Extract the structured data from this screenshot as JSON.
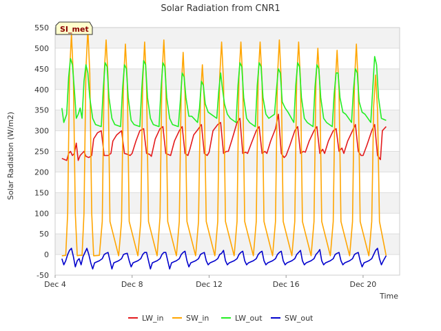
{
  "chart_data": {
    "type": "line",
    "title": "Solar Radiation from CNR1",
    "xlabel": "Time",
    "ylabel": "Solar Radiation (W/m2)",
    "badge": "SI_met",
    "x_range": [
      4,
      21.9
    ],
    "ylim": [
      -50,
      550
    ],
    "y_ticks": [
      -50,
      0,
      50,
      100,
      150,
      200,
      250,
      300,
      350,
      400,
      450,
      500,
      550
    ],
    "x_ticks": [
      {
        "value": 4,
        "label": "Dec 4"
      },
      {
        "value": 8,
        "label": "Dec 8"
      },
      {
        "value": 12,
        "label": "Dec 12"
      },
      {
        "value": 16,
        "label": "Dec 16"
      },
      {
        "value": 20,
        "label": "Dec 20"
      }
    ],
    "grid": true,
    "legend_position": "bottom",
    "series": [
      {
        "name": "LW_in",
        "color": "#e31a1c",
        "x": [
          4.35,
          4.5,
          4.6,
          4.7,
          4.8,
          4.9,
          5.0,
          5.1,
          5.2,
          5.3,
          5.4,
          5.5,
          5.6,
          5.75,
          5.9,
          6.0,
          6.2,
          6.4,
          6.55,
          6.75,
          6.9,
          7.0,
          7.2,
          7.45,
          7.6,
          7.75,
          7.9,
          8.0,
          8.2,
          8.4,
          8.6,
          8.75,
          8.9,
          9.0,
          9.2,
          9.45,
          9.6,
          9.75,
          9.9,
          10.0,
          10.2,
          10.45,
          10.6,
          10.75,
          10.9,
          11.0,
          11.2,
          11.45,
          11.6,
          11.75,
          11.9,
          12.0,
          12.2,
          12.45,
          12.6,
          12.75,
          12.9,
          13.0,
          13.2,
          13.45,
          13.6,
          13.75,
          13.9,
          14.0,
          14.2,
          14.45,
          14.6,
          14.75,
          14.9,
          15.0,
          15.2,
          15.45,
          15.6,
          15.75,
          15.9,
          16.0,
          16.2,
          16.45,
          16.6,
          16.75,
          16.9,
          17.0,
          17.2,
          17.45,
          17.6,
          17.75,
          17.9,
          18.0,
          18.2,
          18.45,
          18.6,
          18.75,
          18.9,
          19.0,
          19.2,
          19.45,
          19.6,
          19.75,
          19.9,
          20.0,
          20.2,
          20.45,
          20.6,
          20.75,
          20.9,
          21.0,
          21.2
        ],
        "y": [
          233,
          230,
          228,
          245,
          250,
          240,
          245,
          270,
          228,
          240,
          245,
          250,
          238,
          235,
          240,
          280,
          295,
          300,
          240,
          240,
          245,
          275,
          290,
          300,
          245,
          243,
          240,
          245,
          275,
          300,
          305,
          245,
          243,
          238,
          280,
          305,
          310,
          245,
          242,
          240,
          275,
          300,
          310,
          245,
          240,
          255,
          290,
          305,
          315,
          245,
          240,
          248,
          300,
          315,
          320,
          245,
          250,
          250,
          280,
          320,
          330,
          245,
          248,
          245,
          270,
          300,
          310,
          245,
          250,
          245,
          275,
          305,
          340,
          245,
          235,
          240,
          265,
          300,
          310,
          245,
          250,
          248,
          275,
          300,
          310,
          245,
          255,
          245,
          275,
          300,
          305,
          250,
          258,
          245,
          275,
          300,
          315,
          250,
          240,
          240,
          265,
          300,
          315,
          240,
          230,
          300,
          310
        ]
      },
      {
        "name": "SW_in",
        "color": "#ffa500",
        "x": [
          4.35,
          4.55,
          4.65,
          4.75,
          4.85,
          4.95,
          5.05,
          5.15,
          5.25,
          5.4,
          5.5,
          5.6,
          5.7,
          5.8,
          5.9,
          6.0,
          6.3,
          6.45,
          6.55,
          6.65,
          6.75,
          6.85,
          7.3,
          7.45,
          7.55,
          7.65,
          7.75,
          7.85,
          8.3,
          8.45,
          8.55,
          8.65,
          8.75,
          8.85,
          9.3,
          9.45,
          9.55,
          9.65,
          9.75,
          9.85,
          10.3,
          10.45,
          10.55,
          10.65,
          10.75,
          10.85,
          11.3,
          11.45,
          11.55,
          11.65,
          11.75,
          11.85,
          12.3,
          12.45,
          12.55,
          12.65,
          12.75,
          12.85,
          13.3,
          13.45,
          13.55,
          13.65,
          13.75,
          13.85,
          14.3,
          14.45,
          14.55,
          14.65,
          14.75,
          14.85,
          15.3,
          15.45,
          15.55,
          15.65,
          15.75,
          15.85,
          16.3,
          16.45,
          16.55,
          16.65,
          16.75,
          16.85,
          17.3,
          17.45,
          17.55,
          17.65,
          17.75,
          17.85,
          18.3,
          18.45,
          18.55,
          18.65,
          18.75,
          18.85,
          19.3,
          19.45,
          19.55,
          19.65,
          19.75,
          19.85,
          20.3,
          20.45,
          20.55,
          20.65,
          20.75,
          20.85,
          21.2
        ],
        "y": [
          -3,
          -2,
          100,
          440,
          535,
          430,
          100,
          -3,
          -2,
          -2,
          100,
          450,
          545,
          440,
          100,
          -3,
          -2,
          80,
          440,
          520,
          430,
          80,
          -3,
          80,
          420,
          510,
          420,
          80,
          -3,
          80,
          420,
          515,
          410,
          80,
          -3,
          90,
          430,
          520,
          420,
          80,
          -3,
          80,
          400,
          490,
          390,
          80,
          -3,
          80,
          380,
          460,
          370,
          80,
          -3,
          80,
          430,
          515,
          420,
          80,
          -3,
          80,
          430,
          515,
          420,
          80,
          -3,
          80,
          430,
          515,
          420,
          80,
          -3,
          80,
          430,
          520,
          420,
          80,
          -3,
          80,
          430,
          515,
          420,
          80,
          -3,
          80,
          420,
          500,
          410,
          80,
          -3,
          80,
          410,
          495,
          400,
          80,
          -3,
          80,
          420,
          510,
          410,
          80,
          -3,
          80,
          360,
          435,
          350,
          80,
          -3
        ]
      },
      {
        "name": "LW_out",
        "color": "#22ee22",
        "x": [
          4.35,
          4.45,
          4.6,
          4.7,
          4.8,
          4.9,
          5.0,
          5.1,
          5.2,
          5.3,
          5.4,
          5.5,
          5.6,
          5.7,
          5.8,
          5.95,
          6.1,
          6.4,
          6.5,
          6.6,
          6.7,
          6.8,
          6.95,
          7.1,
          7.4,
          7.5,
          7.6,
          7.7,
          7.8,
          7.95,
          8.1,
          8.4,
          8.5,
          8.6,
          8.7,
          8.8,
          8.95,
          9.1,
          9.4,
          9.5,
          9.6,
          9.7,
          9.8,
          9.95,
          10.1,
          10.4,
          10.5,
          10.6,
          10.7,
          10.8,
          10.95,
          11.1,
          11.4,
          11.5,
          11.6,
          11.7,
          11.8,
          11.95,
          12.1,
          12.4,
          12.5,
          12.6,
          12.7,
          12.8,
          12.95,
          13.1,
          13.4,
          13.5,
          13.6,
          13.7,
          13.8,
          13.95,
          14.1,
          14.4,
          14.5,
          14.6,
          14.7,
          14.8,
          14.95,
          15.1,
          15.4,
          15.5,
          15.6,
          15.7,
          15.8,
          15.95,
          16.1,
          16.4,
          16.5,
          16.6,
          16.7,
          16.8,
          16.95,
          17.1,
          17.4,
          17.5,
          17.6,
          17.7,
          17.8,
          17.95,
          18.1,
          18.4,
          18.5,
          18.6,
          18.7,
          18.8,
          18.95,
          19.1,
          19.4,
          19.5,
          19.6,
          19.7,
          19.8,
          19.95,
          20.1,
          20.4,
          20.5,
          20.6,
          20.7,
          20.8,
          20.95,
          21.2
        ],
        "y": [
          355,
          320,
          340,
          430,
          475,
          460,
          400,
          330,
          340,
          355,
          330,
          420,
          460,
          440,
          380,
          330,
          315,
          310,
          400,
          465,
          455,
          380,
          330,
          315,
          310,
          400,
          460,
          450,
          380,
          325,
          315,
          310,
          400,
          470,
          460,
          380,
          330,
          315,
          310,
          400,
          465,
          455,
          380,
          330,
          315,
          310,
          370,
          440,
          430,
          380,
          335,
          335,
          320,
          355,
          420,
          410,
          365,
          345,
          340,
          330,
          395,
          440,
          400,
          365,
          340,
          330,
          320,
          410,
          465,
          455,
          380,
          330,
          320,
          310,
          410,
          465,
          455,
          380,
          340,
          330,
          340,
          400,
          450,
          440,
          370,
          355,
          345,
          320,
          410,
          465,
          455,
          380,
          330,
          320,
          310,
          405,
          460,
          450,
          380,
          330,
          320,
          310,
          390,
          440,
          440,
          380,
          345,
          340,
          320,
          400,
          450,
          440,
          370,
          345,
          340,
          320,
          400,
          480,
          460,
          380,
          330,
          325
        ]
      },
      {
        "name": "SW_out",
        "color": "#0000cc",
        "x": [
          4.35,
          4.45,
          4.55,
          4.65,
          4.75,
          4.85,
          4.95,
          5.05,
          5.15,
          5.25,
          5.35,
          5.45,
          5.55,
          5.65,
          5.75,
          5.85,
          5.95,
          6.05,
          6.3,
          6.45,
          6.55,
          6.65,
          6.75,
          6.85,
          6.95,
          7.05,
          7.3,
          7.45,
          7.55,
          7.65,
          7.75,
          7.85,
          7.95,
          8.05,
          8.3,
          8.45,
          8.55,
          8.65,
          8.75,
          8.85,
          8.95,
          9.05,
          9.3,
          9.45,
          9.55,
          9.65,
          9.75,
          9.85,
          9.95,
          10.05,
          10.3,
          10.45,
          10.55,
          10.65,
          10.75,
          10.85,
          10.95,
          11.05,
          11.3,
          11.45,
          11.55,
          11.65,
          11.75,
          11.85,
          11.95,
          12.05,
          12.3,
          12.45,
          12.55,
          12.65,
          12.75,
          12.85,
          12.95,
          13.05,
          13.3,
          13.45,
          13.55,
          13.65,
          13.75,
          13.85,
          13.95,
          14.05,
          14.3,
          14.45,
          14.55,
          14.65,
          14.75,
          14.85,
          14.95,
          15.05,
          15.3,
          15.45,
          15.55,
          15.65,
          15.75,
          15.85,
          15.95,
          16.05,
          16.3,
          16.45,
          16.55,
          16.65,
          16.75,
          16.85,
          16.95,
          17.05,
          17.3,
          17.45,
          17.55,
          17.65,
          17.75,
          17.85,
          17.95,
          18.05,
          18.3,
          18.45,
          18.55,
          18.65,
          18.75,
          18.85,
          18.95,
          19.05,
          19.3,
          19.45,
          19.55,
          19.65,
          19.75,
          19.85,
          19.95,
          20.05,
          20.3,
          20.45,
          20.55,
          20.65,
          20.75,
          20.85,
          20.95,
          21.05,
          21.2
        ],
        "y": [
          -10,
          -25,
          -15,
          0,
          10,
          15,
          -5,
          -30,
          -15,
          -10,
          -25,
          -5,
          5,
          15,
          0,
          -20,
          -35,
          -20,
          -15,
          -10,
          0,
          3,
          5,
          -15,
          -35,
          -20,
          -15,
          -10,
          0,
          2,
          3,
          -15,
          -30,
          -20,
          -15,
          -10,
          0,
          5,
          5,
          -15,
          -35,
          -20,
          -15,
          -10,
          0,
          5,
          5,
          -15,
          -35,
          -20,
          -15,
          -10,
          0,
          5,
          8,
          -15,
          -30,
          -20,
          -15,
          -10,
          0,
          3,
          5,
          -15,
          -25,
          -20,
          -15,
          -10,
          0,
          3,
          10,
          -15,
          -25,
          -20,
          -15,
          -10,
          0,
          5,
          8,
          -15,
          -25,
          -20,
          -15,
          -10,
          0,
          5,
          8,
          -15,
          -25,
          -20,
          -15,
          -10,
          0,
          5,
          8,
          -15,
          -25,
          -20,
          -15,
          -10,
          0,
          5,
          10,
          -15,
          -25,
          -20,
          -15,
          -10,
          0,
          5,
          12,
          -15,
          -25,
          -20,
          -15,
          -10,
          0,
          3,
          5,
          -15,
          -25,
          -20,
          -15,
          -10,
          0,
          3,
          5,
          -15,
          -30,
          -20,
          -15,
          -10,
          0,
          10,
          15,
          -10,
          -25,
          -15,
          -3
        ]
      }
    ]
  }
}
